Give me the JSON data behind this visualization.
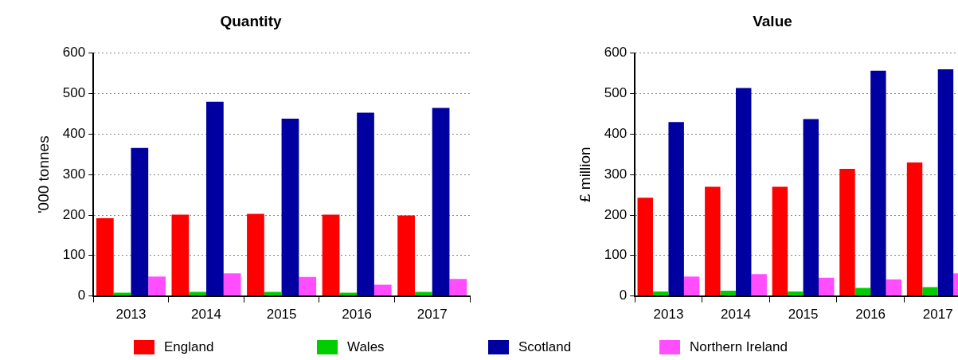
{
  "chart_data": [
    {
      "type": "bar",
      "title": "Quantity",
      "ylabel": "'000 tonnes",
      "categories": [
        "2013",
        "2014",
        "2015",
        "2016",
        "2017"
      ],
      "series": [
        {
          "name": "England",
          "color": "#ff0000",
          "values": [
            192,
            201,
            203,
            201,
            199
          ]
        },
        {
          "name": "Wales",
          "color": "#00cc00",
          "values": [
            8,
            10,
            10,
            8,
            10
          ]
        },
        {
          "name": "Scotland",
          "color": "#0000a0",
          "values": [
            366,
            480,
            438,
            453,
            465
          ]
        },
        {
          "name": "Northern Ireland",
          "color": "#ff4dff",
          "values": [
            48,
            56,
            47,
            28,
            42
          ]
        }
      ],
      "ylim": [
        0,
        600
      ],
      "yticks": [
        0,
        100,
        200,
        300,
        400,
        500,
        600
      ],
      "grid": "y",
      "legend": "bottom"
    },
    {
      "type": "bar",
      "title": "Value",
      "ylabel": "£ million",
      "categories": [
        "2013",
        "2014",
        "2015",
        "2016",
        "2017"
      ],
      "series": [
        {
          "color": "#ff0000",
          "values": [
            243,
            270,
            270,
            314,
            330
          ]
        },
        {
          "color": "#00cc00",
          "values": [
            11,
            13,
            11,
            20,
            22
          ]
        },
        {
          "color": "#0000a0",
          "values": [
            430,
            514,
            437,
            557,
            560
          ]
        },
        {
          "color": "#ff4dff",
          "values": [
            48,
            54,
            45,
            41,
            56
          ]
        }
      ],
      "ylim": [
        0,
        600
      ],
      "yticks": [
        0,
        100,
        200,
        300,
        400,
        500,
        600
      ],
      "grid": "y"
    }
  ]
}
